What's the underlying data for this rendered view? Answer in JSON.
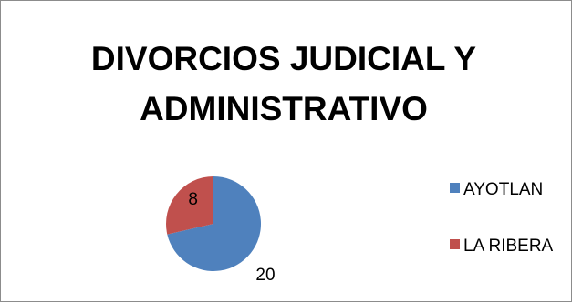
{
  "chart_data": {
    "type": "pie",
    "title": "DIVORCIOS JUDICIAL Y ADMINISTRATIVO",
    "categories": [
      "AYOTLAN",
      "LA RIBERA"
    ],
    "values": [
      20,
      8
    ],
    "data_labels": [
      "20",
      "8"
    ],
    "colors": [
      "#4f81bd",
      "#c0504d"
    ],
    "legend_position": "right"
  }
}
